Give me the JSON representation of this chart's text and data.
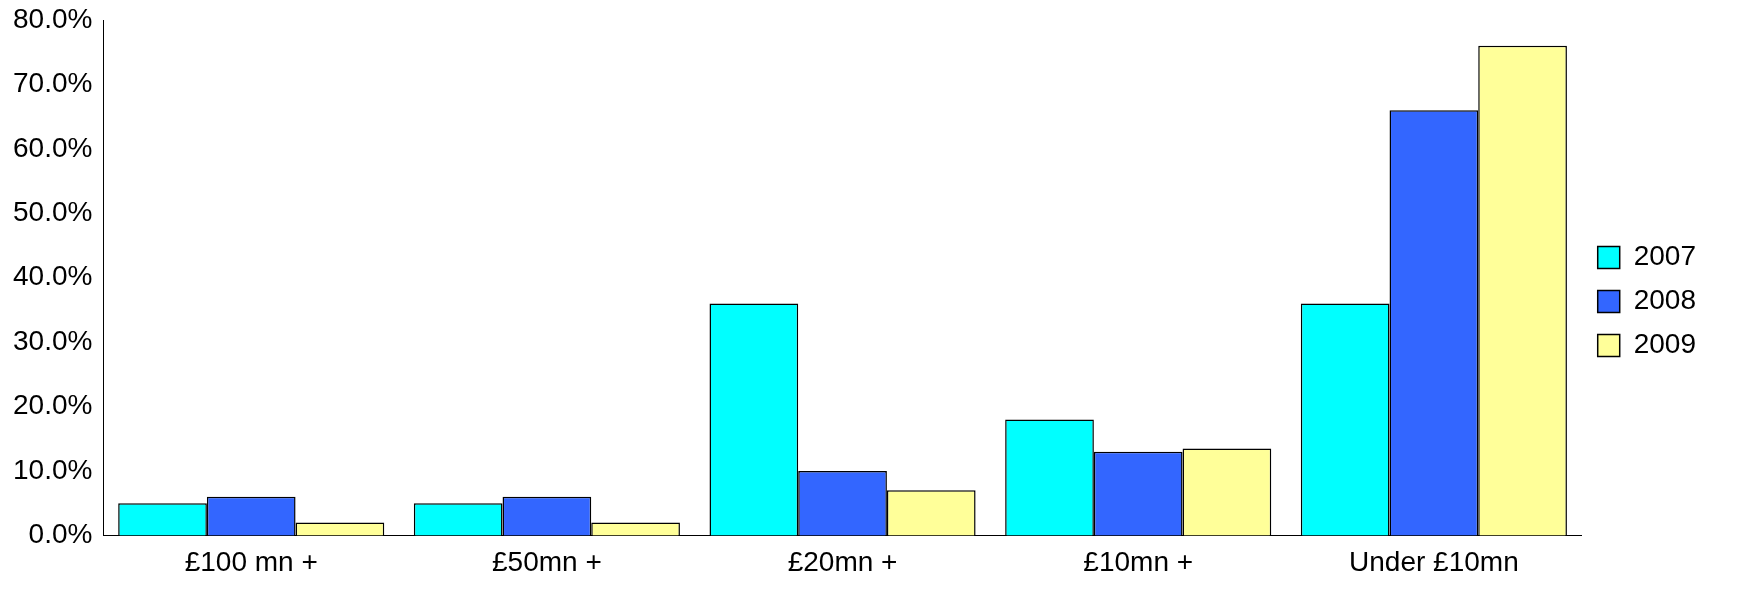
{
  "chart_data": {
    "type": "bar",
    "categories": [
      "£100 mn +",
      "£50mn +",
      "£20mn +",
      "£10mn +",
      "Under £10mn"
    ],
    "series": [
      {
        "name": "2007",
        "color": "#00ffff",
        "values": [
          5,
          5,
          36,
          18,
          36
        ]
      },
      {
        "name": "2008",
        "color": "#3366ff",
        "values": [
          6,
          6,
          10,
          13,
          66
        ]
      },
      {
        "name": "2009",
        "color": "#ffff99",
        "values": [
          2,
          2,
          7,
          13.5,
          76
        ]
      }
    ],
    "ylim": [
      0,
      80
    ],
    "yticks": [
      {
        "value": 0,
        "label": "0.0%"
      },
      {
        "value": 10,
        "label": "10.0%"
      },
      {
        "value": 20,
        "label": "20.0%"
      },
      {
        "value": 30,
        "label": "30.0%"
      },
      {
        "value": 40,
        "label": "40.0%"
      },
      {
        "value": 50,
        "label": "50.0%"
      },
      {
        "value": 60,
        "label": "60.0%"
      },
      {
        "value": 70,
        "label": "70.0%"
      },
      {
        "value": 80,
        "label": "80.0%"
      }
    ],
    "grid": false,
    "legend": "right"
  }
}
